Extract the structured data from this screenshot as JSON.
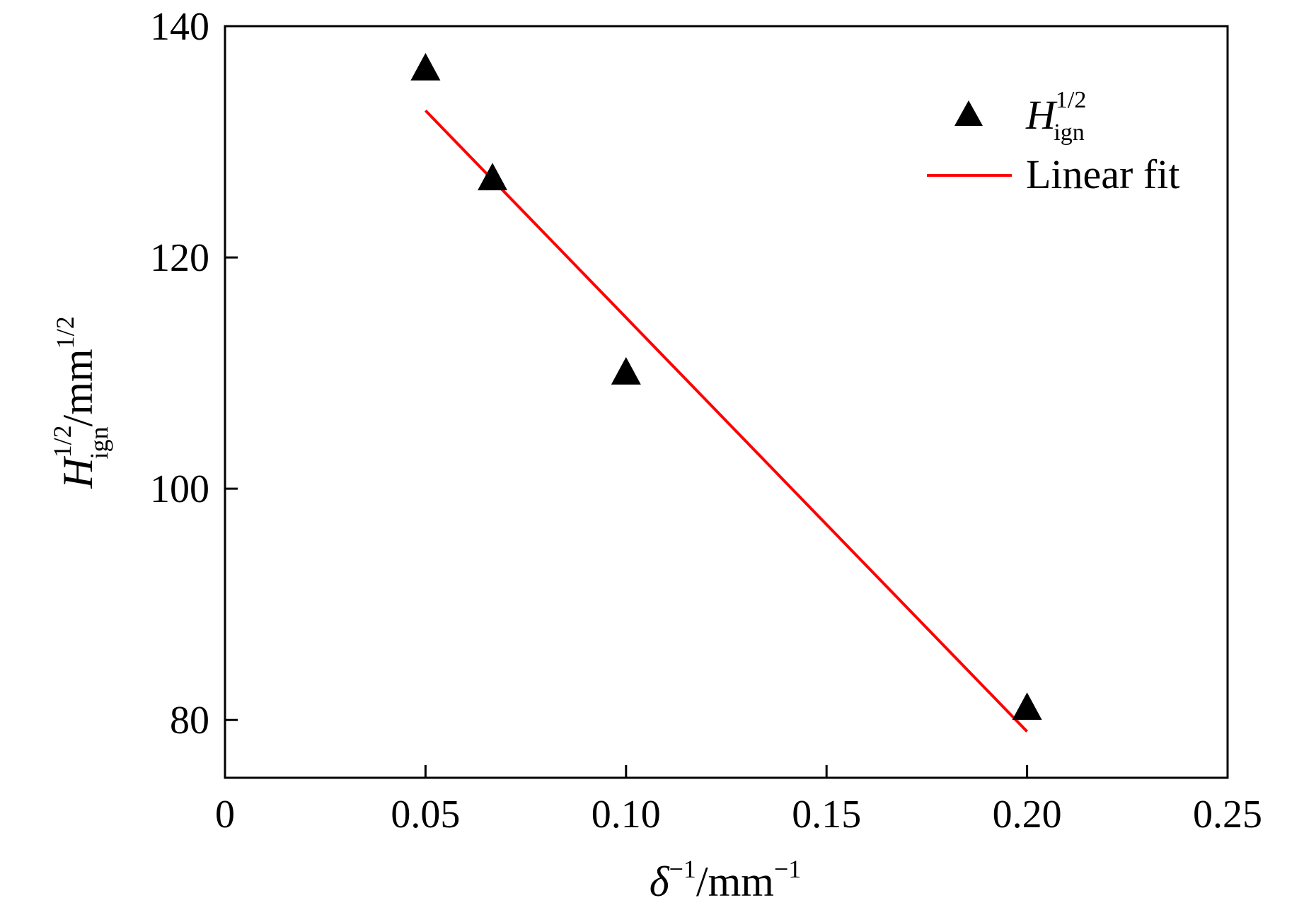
{
  "chart_data": {
    "type": "scatter",
    "xlabel": {
      "symbol": "δ",
      "symbol_sup": "−1",
      "unit": "/mm",
      "unit_sup": "−1"
    },
    "ylabel": {
      "symbol": "H",
      "sup": "1/2",
      "sub": "ign",
      "unit": "/mm",
      "unit_sup": "1/2"
    },
    "xlim": [
      0,
      0.25
    ],
    "ylim": [
      75,
      140
    ],
    "x_ticks": [
      {
        "value": 0,
        "label": "0"
      },
      {
        "value": 0.05,
        "label": "0.05"
      },
      {
        "value": 0.1,
        "label": "0.10"
      },
      {
        "value": 0.15,
        "label": "0.15"
      },
      {
        "value": 0.2,
        "label": "0.20"
      },
      {
        "value": 0.25,
        "label": "0.25"
      }
    ],
    "y_ticks": [
      {
        "value": 80,
        "label": "80"
      },
      {
        "value": 100,
        "label": "100"
      },
      {
        "value": 120,
        "label": "120"
      },
      {
        "value": 140,
        "label": "140"
      }
    ],
    "grid": false,
    "legend_position": "top-right",
    "series": [
      {
        "type": "scatter",
        "marker": "triangle",
        "color": "#000000",
        "legend": {
          "symbol": "H",
          "sup": "1/2",
          "sub": "ign"
        },
        "x": [
          0.05,
          0.0667,
          0.1,
          0.2
        ],
        "y": [
          136.4,
          126.9,
          110.1,
          81.1
        ]
      },
      {
        "type": "line",
        "color": "#ff0000",
        "legend": {
          "text": "Linear fit"
        },
        "x": [
          0.05,
          0.2
        ],
        "y": [
          132.7,
          79.0
        ]
      }
    ]
  }
}
